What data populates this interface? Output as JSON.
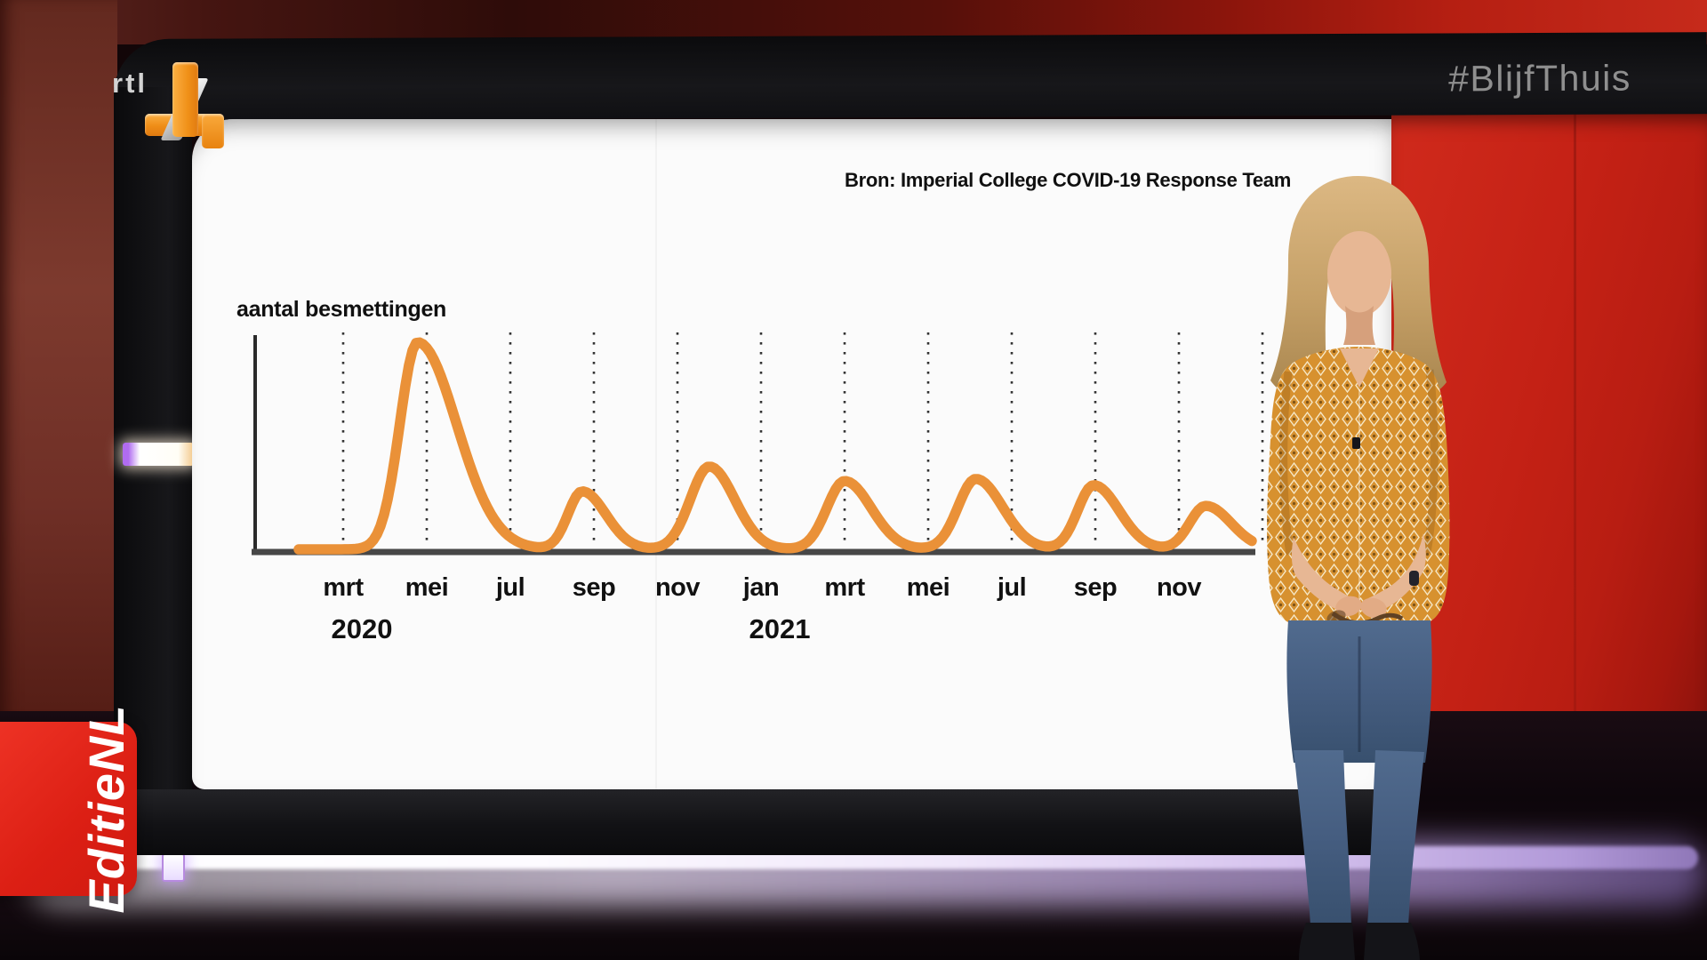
{
  "broadcast": {
    "channel_logo": {
      "rtl_text": "rtl",
      "number": "4"
    },
    "hashtag": "#BlijfThuis",
    "program_banner": "EditieNL"
  },
  "chart_data": {
    "type": "line",
    "title": "",
    "source": "Bron: Imperial College COVID-19 Response Team",
    "ylabel": "aantal besmettingen",
    "series_color": "#ea9138",
    "x_axis": {
      "months": [
        "mrt",
        "mei",
        "jul",
        "sep",
        "nov",
        "jan",
        "mrt",
        "mei",
        "jul",
        "sep",
        "nov"
      ],
      "years": [
        {
          "label": "2020",
          "grid_index": 0
        },
        {
          "label": "2021",
          "grid_index": 5
        }
      ],
      "extra_gridlines": 1
    },
    "y_axis": {
      "label": "aantal besmettingen",
      "tick_labels": []
    },
    "waves": [
      {
        "peak": 0.89,
        "height": 1.0,
        "rise": 0.3,
        "fall": 0.66
      },
      {
        "peak": 2.86,
        "height": 0.28,
        "rise": 0.24,
        "fall": 0.4
      },
      {
        "peak": 4.38,
        "height": 0.4,
        "rise": 0.32,
        "fall": 0.43
      },
      {
        "peak": 6.0,
        "height": 0.33,
        "rise": 0.3,
        "fall": 0.45
      },
      {
        "peak": 7.57,
        "height": 0.34,
        "rise": 0.3,
        "fall": 0.45
      },
      {
        "peak": 8.98,
        "height": 0.31,
        "rise": 0.27,
        "fall": 0.43
      },
      {
        "peak": 10.32,
        "height": 0.21,
        "rise": 0.27,
        "fall": 0.43
      }
    ],
    "grid": "vertical dotted month gridlines",
    "ylim": "relative scale, no numeric ticks"
  },
  "colors": {
    "curve_orange": "#ea9138",
    "studio_red_panel": "#c3241a",
    "banner_red": "#e4271a",
    "hashtag_gray": "#8f8f8f",
    "floor_light": "#cdb6e8"
  }
}
